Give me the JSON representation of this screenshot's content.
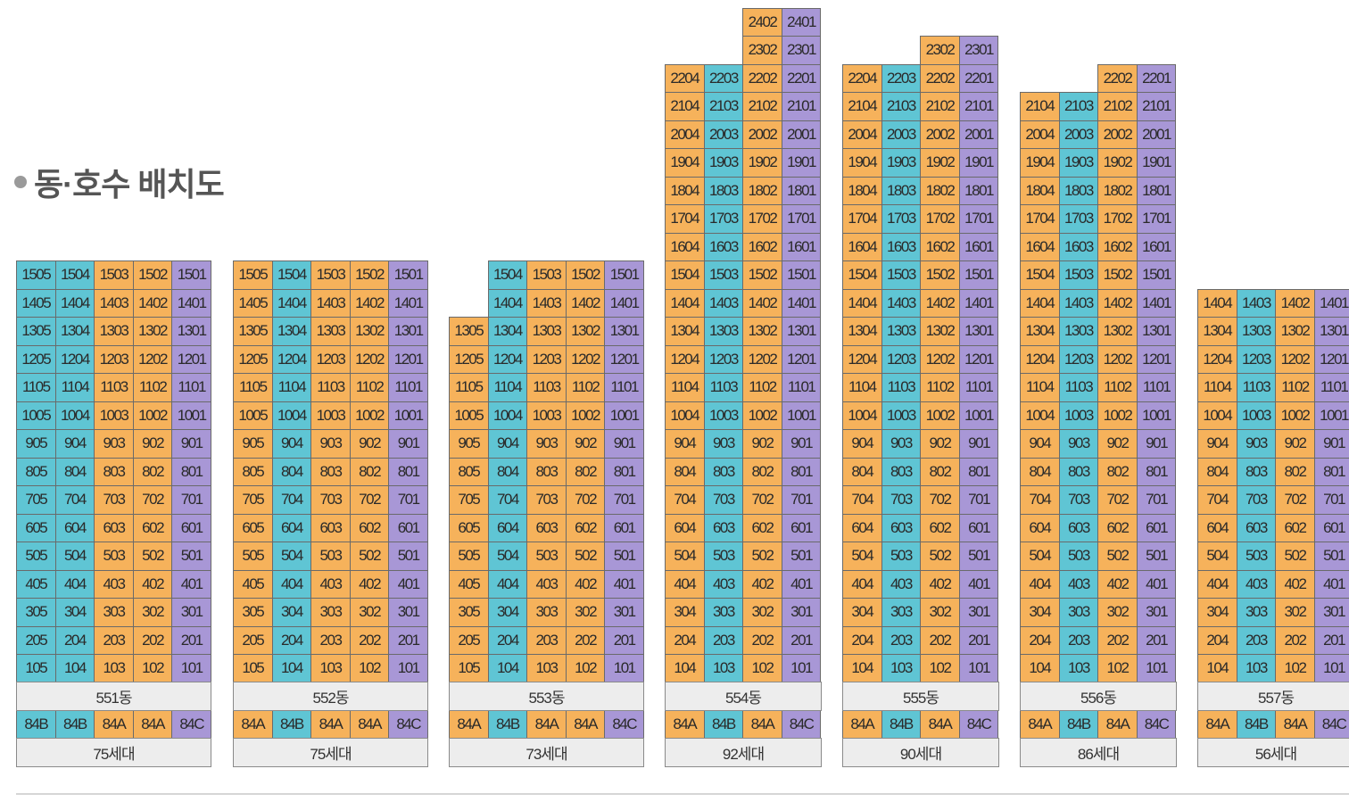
{
  "title": "동·호수 배치도",
  "colors": {
    "A": "#f6b25b",
    "B": "#5fc5d4",
    "C": "#a897d6",
    "bar": "#ededed"
  },
  "buildings": [
    {
      "name": "551동",
      "households": "75세대",
      "top_floors": [
        15,
        15,
        15,
        15,
        15
      ],
      "columns": [
        {
          "type": "84B",
          "unit": "05",
          "color": "B"
        },
        {
          "type": "84B",
          "unit": "04",
          "color": "B"
        },
        {
          "type": "84A",
          "unit": "03",
          "color": "A"
        },
        {
          "type": "84A",
          "unit": "02",
          "color": "A"
        },
        {
          "type": "84C",
          "unit": "01",
          "color": "C"
        }
      ]
    },
    {
      "name": "552동",
      "households": "75세대",
      "top_floors": [
        15,
        15,
        15,
        15,
        15
      ],
      "columns": [
        {
          "type": "84A",
          "unit": "05",
          "color": "A"
        },
        {
          "type": "84B",
          "unit": "04",
          "color": "B"
        },
        {
          "type": "84A",
          "unit": "03",
          "color": "A"
        },
        {
          "type": "84A",
          "unit": "02",
          "color": "A"
        },
        {
          "type": "84C",
          "unit": "01",
          "color": "C"
        }
      ]
    },
    {
      "name": "553동",
      "households": "73세대",
      "top_floors": [
        13,
        15,
        15,
        15,
        15
      ],
      "columns": [
        {
          "type": "84A",
          "unit": "05",
          "color": "A"
        },
        {
          "type": "84B",
          "unit": "04",
          "color": "B"
        },
        {
          "type": "84A",
          "unit": "03",
          "color": "A"
        },
        {
          "type": "84A",
          "unit": "02",
          "color": "A"
        },
        {
          "type": "84C",
          "unit": "01",
          "color": "C"
        }
      ]
    },
    {
      "name": "554동",
      "households": "92세대",
      "top_floors": [
        22,
        22,
        24,
        24
      ],
      "columns": [
        {
          "type": "84A",
          "unit": "04",
          "color": "A"
        },
        {
          "type": "84B",
          "unit": "03",
          "color": "B"
        },
        {
          "type": "84A",
          "unit": "02",
          "color": "A"
        },
        {
          "type": "84C",
          "unit": "01",
          "color": "C"
        }
      ]
    },
    {
      "name": "555동",
      "households": "90세대",
      "top_floors": [
        22,
        22,
        23,
        23
      ],
      "columns": [
        {
          "type": "84A",
          "unit": "04",
          "color": "A"
        },
        {
          "type": "84B",
          "unit": "03",
          "color": "B"
        },
        {
          "type": "84A",
          "unit": "02",
          "color": "A"
        },
        {
          "type": "84C",
          "unit": "01",
          "color": "C"
        }
      ]
    },
    {
      "name": "556동",
      "households": "86세대",
      "top_floors": [
        21,
        21,
        22,
        22
      ],
      "columns": [
        {
          "type": "84A",
          "unit": "04",
          "color": "A"
        },
        {
          "type": "84B",
          "unit": "03",
          "color": "B"
        },
        {
          "type": "84A",
          "unit": "02",
          "color": "A"
        },
        {
          "type": "84C",
          "unit": "01",
          "color": "C"
        }
      ]
    },
    {
      "name": "557동",
      "households": "56세대",
      "top_floors": [
        14,
        14,
        14,
        14
      ],
      "columns": [
        {
          "type": "84A",
          "unit": "04",
          "color": "A"
        },
        {
          "type": "84B",
          "unit": "03",
          "color": "B"
        },
        {
          "type": "84A",
          "unit": "02",
          "color": "A"
        },
        {
          "type": "84C",
          "unit": "01",
          "color": "C"
        }
      ]
    }
  ]
}
